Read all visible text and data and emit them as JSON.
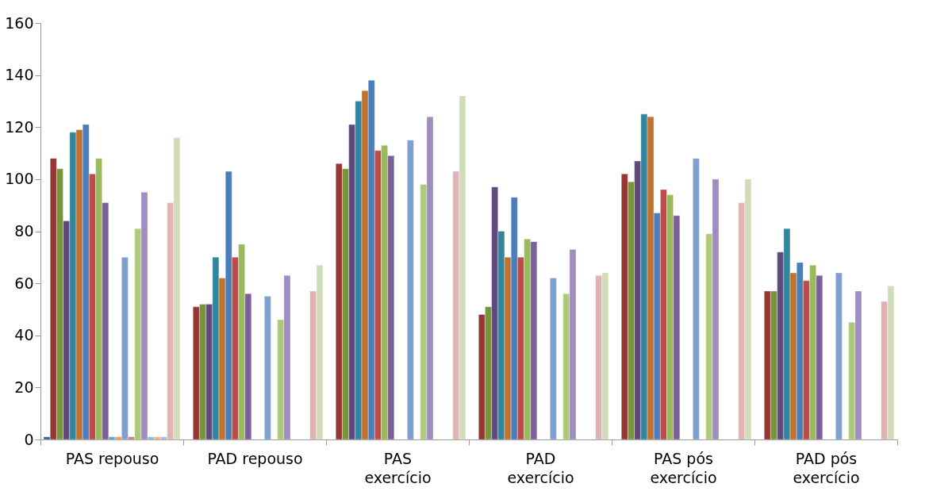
{
  "chart_data": {
    "type": "bar",
    "categories": [
      "PAS repouso",
      "PAD repouso",
      "PAS exercício",
      "PAD exercício",
      "PAS pós exercício",
      "PAD pós exercício"
    ],
    "ylim": [
      0,
      160
    ],
    "yticks": [
      0,
      20,
      40,
      60,
      80,
      100,
      120,
      140,
      160
    ],
    "grid": false,
    "legend": false,
    "series": [
      {
        "color": "#3a5f8f",
        "values": [
          1,
          null,
          null,
          null,
          null,
          null
        ]
      },
      {
        "color": "#953735",
        "values": [
          108,
          51,
          106,
          48,
          102,
          57
        ]
      },
      {
        "color": "#77933c",
        "values": [
          104,
          52,
          104,
          51,
          99,
          57
        ]
      },
      {
        "color": "#604a7b",
        "values": [
          84,
          52,
          121,
          97,
          107,
          72
        ]
      },
      {
        "color": "#31859c",
        "values": [
          118,
          70,
          130,
          80,
          125,
          81
        ]
      },
      {
        "color": "#c0722f",
        "values": [
          119,
          62,
          134,
          70,
          124,
          64
        ]
      },
      {
        "color": "#4a7ebb",
        "values": [
          121,
          103,
          138,
          93,
          87,
          68
        ]
      },
      {
        "color": "#be4b48",
        "values": [
          102,
          70,
          111,
          70,
          96,
          61
        ]
      },
      {
        "color": "#9bbb59",
        "values": [
          108,
          75,
          113,
          77,
          94,
          67
        ]
      },
      {
        "color": "#7d5f9c",
        "values": [
          91,
          56,
          109,
          76,
          86,
          63
        ]
      },
      {
        "color": "#4bacc6",
        "values": [
          1,
          null,
          null,
          null,
          null,
          null
        ]
      },
      {
        "color": "#f79646",
        "values": [
          1,
          null,
          null,
          null,
          null,
          null
        ]
      },
      {
        "color": "#7f9fcf",
        "values": [
          70,
          55,
          115,
          62,
          108,
          64
        ]
      },
      {
        "color": "#d07a78",
        "values": [
          1,
          null,
          null,
          null,
          null,
          null
        ]
      },
      {
        "color": "#afc97a",
        "values": [
          81,
          46,
          98,
          56,
          79,
          45
        ]
      },
      {
        "color": "#9f8dc0",
        "values": [
          95,
          63,
          124,
          73,
          100,
          57
        ]
      },
      {
        "color": "#7ebfd6",
        "values": [
          1,
          null,
          null,
          null,
          null,
          null
        ]
      },
      {
        "color": "#f9b07b",
        "values": [
          1,
          null,
          null,
          null,
          null,
          null
        ]
      },
      {
        "color": "#a9bbe0",
        "values": [
          1,
          null,
          null,
          null,
          null,
          null
        ]
      },
      {
        "color": "#e0b4b4",
        "values": [
          91,
          57,
          103,
          63,
          91,
          53
        ]
      },
      {
        "color": "#d0ddb8",
        "values": [
          116,
          67,
          132,
          64,
          100,
          59
        ]
      }
    ]
  }
}
